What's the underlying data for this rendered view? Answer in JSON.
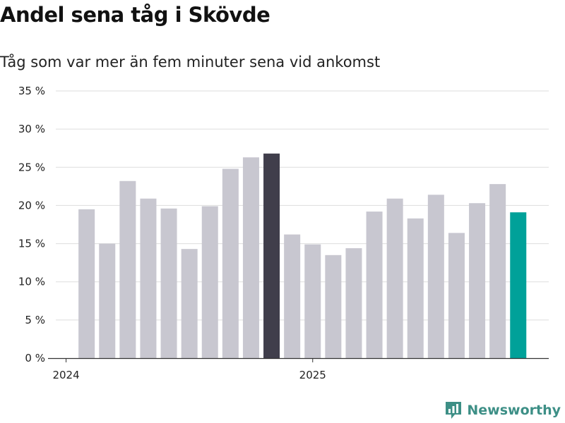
{
  "colors": {
    "bar_default": "#c8c7d0",
    "bar_highlight": "#403e4b",
    "bar_latest": "#00a199",
    "grid": "#dddddd",
    "axis": "#333333",
    "brand": "#3d8f86"
  },
  "brand": {
    "name": "Newsworthy",
    "icon": "newsworthy-logo-icon"
  },
  "chart_data": {
    "type": "bar",
    "title": "Andel sena tåg i Skövde",
    "subtitle": "Tåg som var mer än fem minuter sena vid ankomst",
    "xlabel": "",
    "ylabel": "",
    "ylim": [
      0,
      35
    ],
    "y_ticks": [
      0,
      5,
      10,
      15,
      20,
      25,
      30,
      35
    ],
    "y_tick_labels": [
      "0 %",
      "5 %",
      "10 %",
      "15 %",
      "20 %",
      "25 %",
      "30 %",
      "35 %"
    ],
    "x_tick_labels": [
      {
        "label": "2024",
        "month_index": 0
      },
      {
        "label": "2025",
        "month_index": 12
      }
    ],
    "grid": true,
    "months": [
      "2024-01",
      "2024-02",
      "2024-03",
      "2024-04",
      "2024-05",
      "2024-06",
      "2024-07",
      "2024-08",
      "2024-09",
      "2024-10",
      "2024-11",
      "2024-12",
      "2025-01",
      "2025-02",
      "2025-03",
      "2025-04",
      "2025-05",
      "2025-06",
      "2025-07",
      "2025-08",
      "2025-09",
      "2025-10",
      "2025-11",
      "2025-12"
    ],
    "values": [
      null,
      19.5,
      15.0,
      23.2,
      20.9,
      19.6,
      14.3,
      19.9,
      24.8,
      26.3,
      26.8,
      16.2,
      14.9,
      13.5,
      14.4,
      19.2,
      20.9,
      18.3,
      21.4,
      16.4,
      20.3,
      22.8,
      19.1,
      null
    ],
    "highlight_index": 10,
    "latest_index": 22
  }
}
